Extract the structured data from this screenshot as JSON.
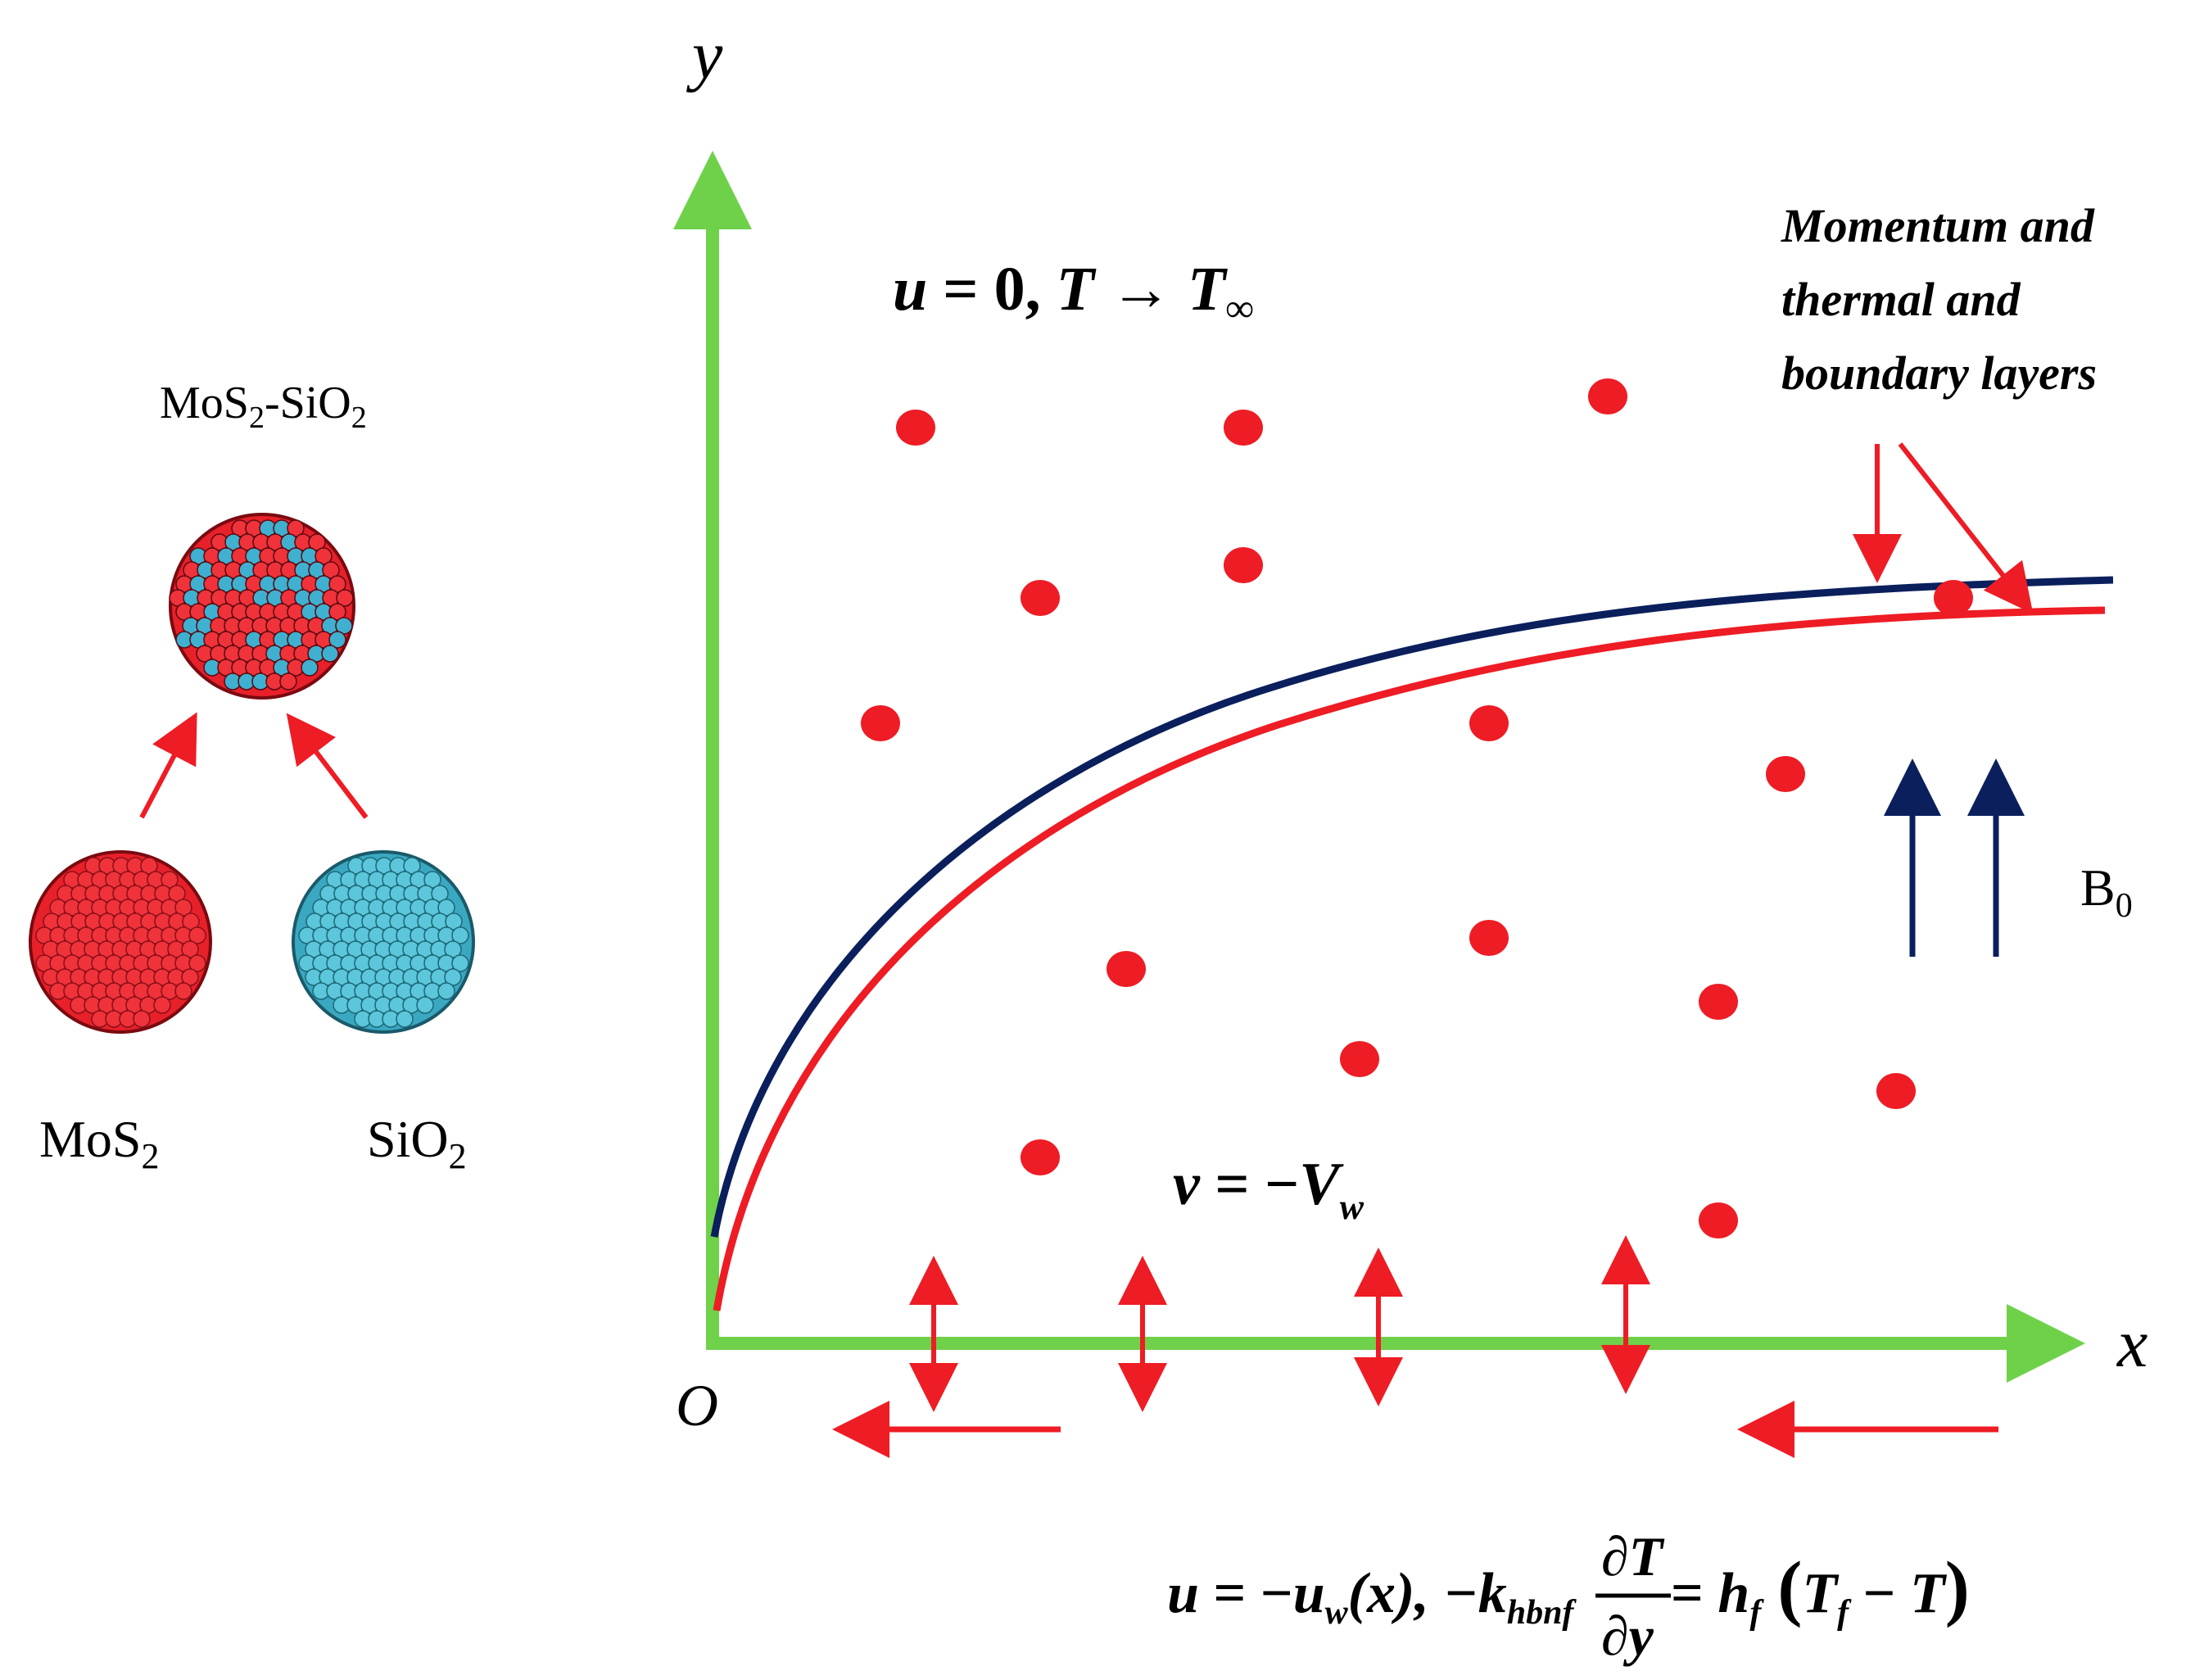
{
  "axes": {
    "y_label": "y",
    "x_label": "x",
    "origin_label": "O",
    "color": "#6fd14a"
  },
  "nanoparticles": {
    "hybrid": {
      "label_main": "MoS",
      "label_sub1": "2",
      "label_mid": "-SiO",
      "label_sub2": "2"
    },
    "mos2": {
      "label_main": "MoS",
      "label_sub": "2",
      "color": "#e8202a"
    },
    "sio2": {
      "label_main": "SiO",
      "label_sub": "2",
      "color": "#3aa8c0"
    }
  },
  "equations": {
    "far_field": {
      "u": "u",
      "eq": " = 0,  ",
      "T": "T",
      "arrow": " → ",
      "Tinf": "T",
      "inf_sub": "∞"
    },
    "wall_suction": {
      "v": "v",
      "eq": " = −",
      "V": "V",
      "sub": "w"
    },
    "boundary": {
      "u": "u",
      "eq1": " = −",
      "uw": "u",
      "uw_sub": "w",
      "x_arg": "(x), −",
      "k": "k",
      "k_sub": "hbnf",
      "numerator": "∂T",
      "denominator": "∂y",
      "eq2": " = ",
      "h": "h",
      "h_sub": "f",
      "paren_open": "(",
      "Tf": "T",
      "Tf_sub": "f",
      "minus": " − ",
      "T": "T",
      "paren_close": ")"
    }
  },
  "annotations": {
    "boundary_layers_line1": "Momentum and",
    "boundary_layers_line2": "thermal and",
    "boundary_layers_line3": "boundary layers",
    "magnetic_field_main": "B",
    "magnetic_field_sub": "0"
  },
  "colors": {
    "momentum_layer": "#0a1f5c",
    "thermal_layer": "#ee1c24",
    "arrows_red": "#ee1c24",
    "arrows_blue": "#0a1f5c",
    "particle": "#ee1c24"
  }
}
